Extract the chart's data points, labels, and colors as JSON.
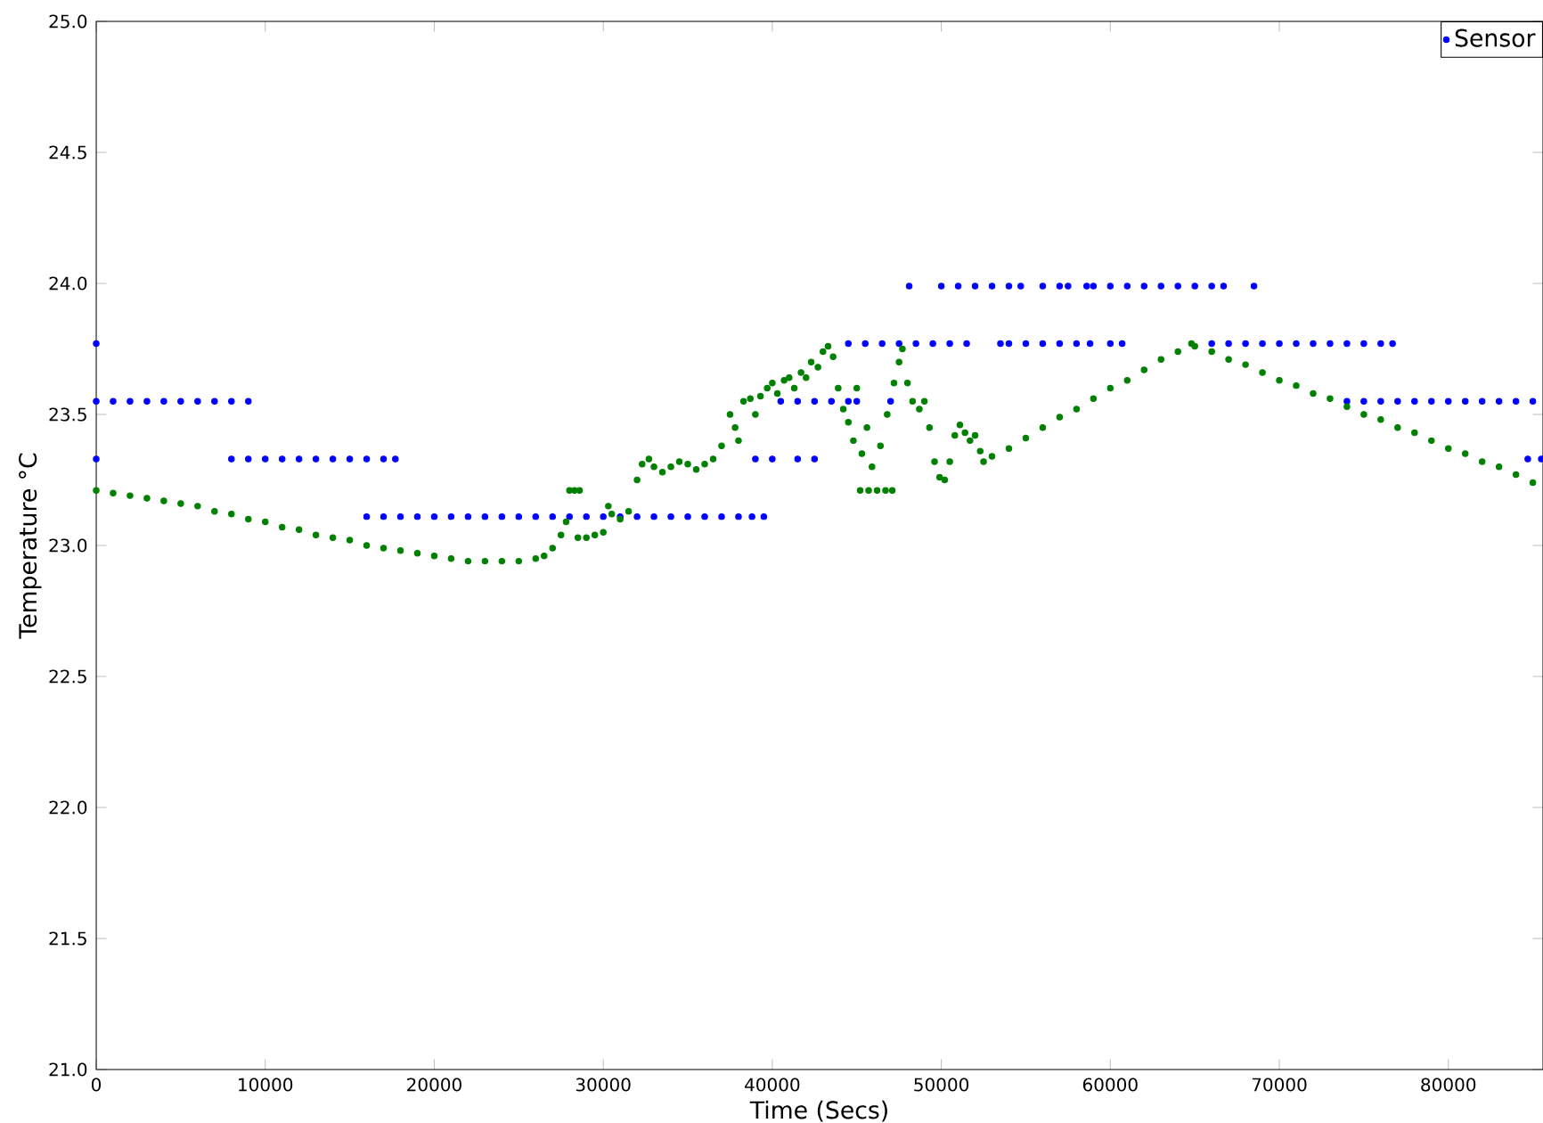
{
  "chart_data": {
    "type": "scatter",
    "xlabel": "Time (Secs)",
    "ylabel": "Temperature °C",
    "xlim": [
      0,
      85600
    ],
    "ylim": [
      21.0,
      25.0
    ],
    "xticks": [
      0,
      10000,
      20000,
      30000,
      40000,
      50000,
      60000,
      70000,
      80000
    ],
    "yticks": [
      {
        "value": 21.0,
        "label": "21.0"
      },
      {
        "value": 21.5,
        "label": "21.5"
      },
      {
        "value": 22.0,
        "label": "22.0"
      },
      {
        "value": 22.5,
        "label": "22.5"
      },
      {
        "value": 23.0,
        "label": "23.0"
      },
      {
        "value": 23.5,
        "label": "23.5"
      },
      {
        "value": 24.0,
        "label": "24.0"
      },
      {
        "value": 24.5,
        "label": "24.5"
      },
      {
        "value": 25.0,
        "label": "25.0"
      }
    ],
    "legend": "top right",
    "marker": "circle",
    "grid": false,
    "series": [
      {
        "name": "Sensor",
        "color": "#0000ff",
        "x": [
          0,
          0,
          0,
          1000,
          2000,
          3000,
          4000,
          5000,
          6000,
          7000,
          8000,
          9000,
          8000,
          9000,
          10000,
          11000,
          12000,
          13000,
          14000,
          15000,
          16000,
          17000,
          17700,
          16000,
          17000,
          18000,
          19000,
          20000,
          21000,
          22000,
          23000,
          24000,
          25000,
          26000,
          27000,
          28000,
          29000,
          30000,
          31000,
          32000,
          33000,
          34000,
          35000,
          36000,
          37000,
          38000,
          38800,
          39500,
          39000,
          40000,
          41500,
          42500,
          40500,
          41500,
          42500,
          43500,
          44500,
          45000,
          47000,
          44500,
          45500,
          46500,
          47500,
          48500,
          49500,
          50500,
          51500,
          53500,
          54000,
          55000,
          56000,
          57000,
          58000,
          58800,
          60000,
          60700,
          66000,
          67000,
          68000,
          69000,
          70000,
          71000,
          72000,
          73000,
          74000,
          75000,
          76000,
          76700,
          48100,
          50000,
          51000,
          52000,
          53000,
          54000,
          54700,
          56000,
          57000,
          57500,
          58600,
          59000,
          60000,
          61000,
          62000,
          63000,
          64000,
          65000,
          66000,
          66700,
          68500,
          74000,
          75000,
          76000,
          77000,
          78000,
          79000,
          80000,
          81000,
          82000,
          83000,
          84000,
          85000,
          84700,
          85500
        ],
        "values": [
          23.77,
          23.33,
          23.55,
          23.55,
          23.55,
          23.55,
          23.55,
          23.55,
          23.55,
          23.55,
          23.55,
          23.55,
          23.33,
          23.33,
          23.33,
          23.33,
          23.33,
          23.33,
          23.33,
          23.33,
          23.33,
          23.33,
          23.33,
          23.11,
          23.11,
          23.11,
          23.11,
          23.11,
          23.11,
          23.11,
          23.11,
          23.11,
          23.11,
          23.11,
          23.11,
          23.11,
          23.11,
          23.11,
          23.11,
          23.11,
          23.11,
          23.11,
          23.11,
          23.11,
          23.11,
          23.11,
          23.11,
          23.11,
          23.33,
          23.33,
          23.33,
          23.33,
          23.55,
          23.55,
          23.55,
          23.55,
          23.55,
          23.55,
          23.55,
          23.77,
          23.77,
          23.77,
          23.77,
          23.77,
          23.77,
          23.77,
          23.77,
          23.77,
          23.77,
          23.77,
          23.77,
          23.77,
          23.77,
          23.77,
          23.77,
          23.77,
          23.77,
          23.77,
          23.77,
          23.77,
          23.77,
          23.77,
          23.77,
          23.77,
          23.77,
          23.77,
          23.77,
          23.77,
          23.99,
          23.99,
          23.99,
          23.99,
          23.99,
          23.99,
          23.99,
          23.99,
          23.99,
          23.99,
          23.99,
          23.99,
          23.99,
          23.99,
          23.99,
          23.99,
          23.99,
          23.99,
          23.99,
          23.99,
          23.99,
          23.55,
          23.55,
          23.55,
          23.55,
          23.55,
          23.55,
          23.55,
          23.55,
          23.55,
          23.55,
          23.55,
          23.55,
          23.33,
          23.33
        ]
      },
      {
        "color": "#008000",
        "x": [
          0,
          1000,
          2000,
          3000,
          4000,
          5000,
          6000,
          7000,
          8000,
          9000,
          10000,
          11000,
          12000,
          13000,
          14000,
          15000,
          16000,
          17000,
          18000,
          19000,
          20000,
          21000,
          22000,
          23000,
          24000,
          25000,
          26000,
          26500,
          27000,
          27500,
          27800,
          28000,
          28300,
          28600,
          28500,
          29000,
          29500,
          30000,
          30300,
          30500,
          31000,
          31500,
          32000,
          32300,
          32700,
          33000,
          33500,
          34000,
          34500,
          35000,
          35500,
          36000,
          36500,
          37000,
          37500,
          37800,
          38000,
          38300,
          38700,
          39000,
          39300,
          39700,
          40000,
          40300,
          40700,
          41000,
          41300,
          41700,
          42000,
          42300,
          42700,
          43000,
          43300,
          43600,
          43900,
          44200,
          44500,
          44800,
          45000,
          45300,
          45600,
          45900,
          45200,
          45700,
          46200,
          46700,
          47100,
          46400,
          46800,
          47200,
          47500,
          47700,
          48000,
          48300,
          48700,
          49000,
          49300,
          49600,
          49900,
          50200,
          50500,
          50800,
          51100,
          51400,
          51700,
          52000,
          52300,
          52500,
          53000,
          54000,
          55000,
          56000,
          57000,
          58000,
          59000,
          60000,
          61000,
          62000,
          63000,
          64000,
          64800,
          65000,
          66000,
          67000,
          68000,
          69000,
          70000,
          71000,
          72000,
          73000,
          74000,
          75000,
          76000,
          77000,
          78000,
          79000,
          80000,
          81000,
          82000,
          83000,
          84000,
          85000
        ],
        "values": [
          23.21,
          23.2,
          23.19,
          23.18,
          23.17,
          23.16,
          23.15,
          23.13,
          23.12,
          23.1,
          23.09,
          23.07,
          23.06,
          23.04,
          23.03,
          23.02,
          23.0,
          22.99,
          22.98,
          22.97,
          22.96,
          22.95,
          22.94,
          22.94,
          22.94,
          22.94,
          22.95,
          22.96,
          22.99,
          23.04,
          23.09,
          23.21,
          23.21,
          23.21,
          23.03,
          23.03,
          23.04,
          23.05,
          23.15,
          23.12,
          23.1,
          23.13,
          23.25,
          23.31,
          23.33,
          23.3,
          23.28,
          23.3,
          23.32,
          23.31,
          23.29,
          23.31,
          23.33,
          23.38,
          23.5,
          23.45,
          23.4,
          23.55,
          23.56,
          23.5,
          23.57,
          23.6,
          23.62,
          23.58,
          23.63,
          23.64,
          23.6,
          23.66,
          23.64,
          23.7,
          23.68,
          23.74,
          23.76,
          23.72,
          23.6,
          23.52,
          23.47,
          23.4,
          23.6,
          23.35,
          23.45,
          23.3,
          23.21,
          23.21,
          23.21,
          23.21,
          23.21,
          23.38,
          23.5,
          23.62,
          23.7,
          23.75,
          23.62,
          23.55,
          23.52,
          23.55,
          23.45,
          23.32,
          23.26,
          23.25,
          23.32,
          23.42,
          23.46,
          23.43,
          23.4,
          23.42,
          23.36,
          23.32,
          23.34,
          23.37,
          23.41,
          23.45,
          23.49,
          23.52,
          23.56,
          23.6,
          23.63,
          23.67,
          23.71,
          23.74,
          23.77,
          23.76,
          23.74,
          23.71,
          23.69,
          23.66,
          23.63,
          23.61,
          23.58,
          23.56,
          23.53,
          23.5,
          23.48,
          23.45,
          23.43,
          23.4,
          23.37,
          23.35,
          23.32,
          23.3,
          23.27,
          23.24
        ]
      }
    ]
  }
}
